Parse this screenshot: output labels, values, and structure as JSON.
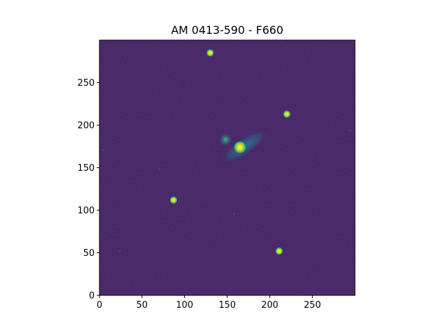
{
  "chart_data": {
    "type": "heatmap",
    "title": "AM 0413-590 - F660",
    "xlabel": "",
    "ylabel": "",
    "xlim": [
      0,
      300
    ],
    "ylim": [
      0,
      300
    ],
    "x_ticks": [
      0,
      50,
      100,
      150,
      200,
      250
    ],
    "y_ticks": [
      0,
      50,
      100,
      150,
      200,
      250
    ],
    "x_tick_labels": [
      "0",
      "50",
      "100",
      "150",
      "200",
      "250"
    ],
    "y_tick_labels": [
      "0",
      "50",
      "100",
      "150",
      "200",
      "250"
    ],
    "grid": false,
    "colormap": "viridis",
    "background_color": "#3b1b5a",
    "point_sources": [
      {
        "x": 130,
        "y": 285,
        "intensity": "high"
      },
      {
        "x": 220,
        "y": 213,
        "intensity": "high"
      },
      {
        "x": 87,
        "y": 112,
        "intensity": "high"
      },
      {
        "x": 211,
        "y": 52,
        "intensity": "high"
      },
      {
        "x": 158,
        "y": 96,
        "intensity": "low"
      },
      {
        "x": 70,
        "y": 148,
        "intensity": "low"
      },
      {
        "x": 4,
        "y": 171,
        "intensity": "low"
      },
      {
        "x": 294,
        "y": 194,
        "intensity": "low"
      },
      {
        "x": 24,
        "y": 52,
        "intensity": "low"
      }
    ],
    "galaxy": {
      "nucleus": {
        "x": 165,
        "y": 174
      },
      "knot": {
        "x": 148,
        "y": 183
      },
      "extent_x": [
        135,
        205
      ],
      "extent_y": [
        150,
        200
      ]
    }
  }
}
